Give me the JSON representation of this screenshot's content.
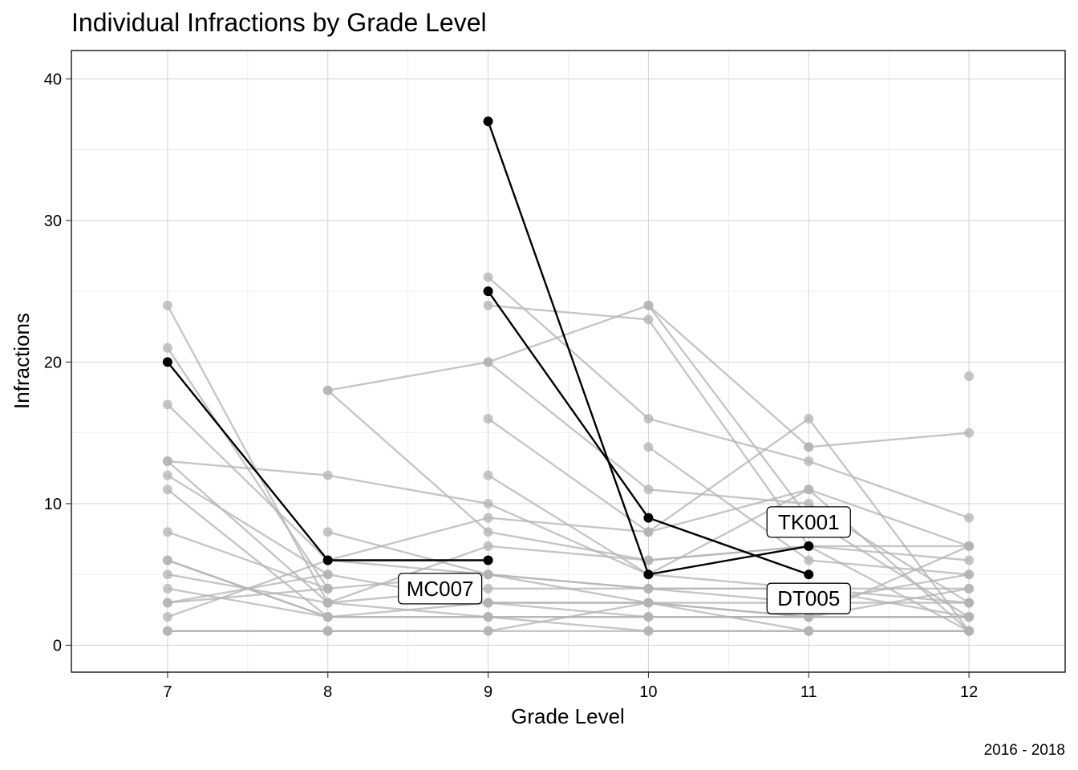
{
  "chart_data": {
    "type": "line",
    "title": "Individual Infractions by Grade Level",
    "xlabel": "Grade Level",
    "ylabel": "Infractions",
    "caption": "2016 - 2018",
    "x_ticks": [
      7,
      8,
      9,
      10,
      11,
      12
    ],
    "y_ticks": [
      0,
      10,
      20,
      30,
      40
    ],
    "xlim": [
      6.4,
      12.6
    ],
    "ylim": [
      -1.9,
      42
    ],
    "grid": true,
    "legend": "none",
    "colors": {
      "highlight": "#000000",
      "background_series": "#b3b3b3"
    },
    "highlighted_series": [
      {
        "name": "MC007",
        "x": [
          7,
          8,
          9
        ],
        "y": [
          20,
          6,
          6
        ],
        "label_at": [
          8.7,
          4
        ]
      },
      {
        "name": "TK001",
        "x": [
          9,
          10,
          11
        ],
        "y": [
          37,
          5,
          7
        ],
        "label_at": [
          11,
          8.7
        ]
      },
      {
        "name": "DT005",
        "x": [
          9,
          10,
          11
        ],
        "y": [
          25,
          9,
          5
        ],
        "label_at": [
          11,
          3.3
        ]
      }
    ],
    "background_series": [
      {
        "x": [
          8,
          9,
          10,
          11
        ],
        "y": [
          18,
          20,
          24,
          14
        ]
      },
      {
        "x": [
          8,
          9,
          10,
          11,
          12
        ],
        "y": [
          18,
          8,
          6,
          7,
          7
        ]
      },
      {
        "x": [
          9,
          10,
          11,
          12
        ],
        "y": [
          24,
          23,
          7,
          1
        ]
      },
      {
        "x": [
          9,
          10,
          11,
          12
        ],
        "y": [
          20,
          11,
          10,
          3
        ]
      },
      {
        "x": [
          10,
          11,
          12
        ],
        "y": [
          24,
          9,
          2
        ]
      },
      {
        "x": [
          11,
          12
        ],
        "y": [
          14,
          15
        ]
      },
      {
        "x": [
          9,
          10,
          11,
          12
        ],
        "y": [
          16,
          8,
          16,
          1
        ]
      },
      {
        "x": [
          7,
          8,
          9,
          10,
          11,
          12
        ],
        "y": [
          13,
          12,
          10,
          5,
          4,
          4
        ]
      },
      {
        "x": [
          7,
          8,
          9,
          10,
          11,
          12
        ],
        "y": [
          17,
          6,
          5,
          4,
          4,
          2
        ]
      },
      {
        "x": [
          7,
          8,
          9,
          10,
          11,
          12
        ],
        "y": [
          13,
          3,
          2,
          1,
          1,
          1
        ]
      },
      {
        "x": [
          9,
          10,
          11,
          12
        ],
        "y": [
          12,
          5,
          11,
          1
        ]
      },
      {
        "x": [
          8,
          9,
          10,
          11,
          12
        ],
        "y": [
          8,
          5,
          3,
          2,
          2
        ]
      },
      {
        "x": [
          7,
          8,
          9,
          10,
          11,
          12
        ],
        "y": [
          2,
          6,
          9,
          8,
          11,
          7
        ]
      },
      {
        "x": [
          7,
          8,
          9,
          10,
          11,
          12
        ],
        "y": [
          6,
          2,
          3,
          3,
          2,
          2
        ]
      },
      {
        "x": [
          7,
          8,
          9,
          10,
          11,
          12
        ],
        "y": [
          5,
          3,
          4,
          4,
          4,
          3
        ]
      },
      {
        "x": [
          7,
          8,
          9,
          10,
          11,
          12
        ],
        "y": [
          3,
          4,
          5,
          4,
          3,
          5
        ]
      },
      {
        "x": [
          7,
          8,
          9,
          10,
          11,
          12
        ],
        "y": [
          3,
          5,
          3,
          2,
          2,
          7
        ]
      },
      {
        "x": [
          7,
          8,
          9,
          10,
          11,
          12
        ],
        "y": [
          6,
          2,
          2,
          2,
          2,
          2
        ]
      },
      {
        "x": [
          7,
          8,
          9,
          10,
          11,
          12
        ],
        "y": [
          1,
          1,
          1,
          3,
          1,
          1
        ]
      },
      {
        "x": [
          8,
          9,
          10,
          11,
          12
        ],
        "y": [
          1,
          1,
          1,
          1,
          1
        ]
      },
      {
        "x": [
          8,
          9,
          10,
          11,
          12
        ],
        "y": [
          2,
          2,
          2,
          2,
          4
        ]
      },
      {
        "x": [
          8,
          9,
          10,
          11,
          12
        ],
        "y": [
          3,
          7,
          6,
          7,
          6
        ]
      },
      {
        "x": [
          9,
          10,
          11,
          12
        ],
        "y": [
          3,
          3,
          3,
          3
        ]
      },
      {
        "x": [
          7,
          8
        ],
        "y": [
          4,
          2
        ]
      },
      {
        "x": [
          7,
          8
        ],
        "y": [
          1,
          1
        ]
      },
      {
        "x": [
          9,
          10,
          11,
          12
        ],
        "y": [
          26,
          16,
          13,
          9
        ]
      },
      {
        "x": [
          7,
          8
        ],
        "y": [
          24,
          3
        ]
      },
      {
        "x": [
          7,
          8
        ],
        "y": [
          21,
          4
        ]
      },
      {
        "x": [
          7,
          8
        ],
        "y": [
          12,
          5
        ]
      },
      {
        "x": [
          7,
          8
        ],
        "y": [
          11,
          2
        ]
      },
      {
        "x": [
          7,
          8
        ],
        "y": [
          8,
          4
        ]
      },
      {
        "x": [
          10,
          11,
          12
        ],
        "y": [
          14,
          6,
          5
        ]
      },
      {
        "x": [
          12
        ],
        "y": [
          19
        ]
      }
    ]
  }
}
